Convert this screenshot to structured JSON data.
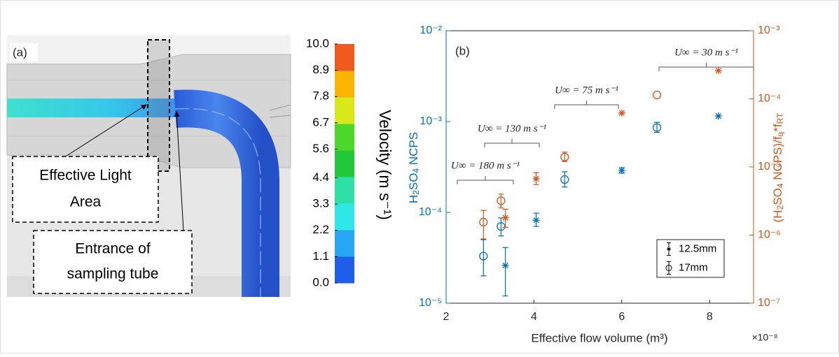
{
  "chart_data": [
    {
      "type": "colorbar",
      "label": "(a)",
      "title": "Velocity (m s⁻¹)",
      "ylim": [
        0,
        10
      ],
      "yticks": [
        {
          "value": 0,
          "label": "0.0"
        },
        1.1,
        2.2,
        3.3,
        4.4,
        5.6,
        6.7,
        7.8,
        8.9,
        {
          "value": 10,
          "label": "10.0"
        }
      ],
      "colors": [
        "#1f5ce8",
        "#27a6f2",
        "#2ee6e6",
        "#2ee0a8",
        "#22c83c",
        "#4cd82a",
        "#d8e818",
        "#f8b400",
        "#f05a1e"
      ],
      "annotations": [
        [
          "Effective Light",
          "Area"
        ],
        [
          "Entrance of",
          "sampling tube"
        ]
      ]
    },
    {
      "type": "scatter",
      "label": "(b)",
      "xlabel": "Effective flow volume  (m³)",
      "x_multiplier": "×10⁻⁸",
      "ylabel": [
        "H",
        "2",
        "SO",
        "4",
        " NCPS"
      ],
      "y2label": [
        "(H",
        "2",
        "SO",
        "4",
        " NCPS)/f",
        "q",
        "*f",
        "RT"
      ],
      "xlim": [
        2,
        9
      ],
      "xticks": [
        2,
        4,
        6,
        8
      ],
      "ylim": [
        1e-05,
        0.01
      ],
      "yscale": "log",
      "yticks": [
        {
          "value": 1e-05,
          "label": "10⁻⁵"
        },
        {
          "value": 0.0001,
          "label": "10⁻⁴"
        },
        {
          "value": 0.001,
          "label": "10⁻³"
        },
        {
          "value": 0.01,
          "label": "10⁻²"
        }
      ],
      "y2lim": [
        1e-07,
        0.001
      ],
      "y2scale": "log",
      "y2ticks": [
        {
          "value": 1e-07,
          "label": "10⁻⁷"
        },
        {
          "value": 1e-06,
          "label": "10⁻⁶"
        },
        {
          "value": 1e-05,
          "label": "10⁻⁵"
        },
        {
          "value": 0.0001,
          "label": "10⁻⁴"
        },
        {
          "value": 0.001,
          "label": "10⁻³"
        }
      ],
      "ycolor": "#0072bd",
      "y2color": "#d95319",
      "legend": "lower right",
      "legend_color": "#000000",
      "series": [
        {
          "name": "12.5mm",
          "marker": "star",
          "color": "#0072bd",
          "x": [
            3.35,
            4.05,
            6.0,
            8.2
          ],
          "values": [
            2.6e-05,
            8.2e-05,
            0.00029,
            0.00115
          ],
          "lower": [
            1.2e-05,
            7e-05,
            0.00027,
            null
          ],
          "upper": [
            4.1e-05,
            9.8e-05,
            0.00031,
            null
          ]
        },
        {
          "name": "17mm",
          "marker": "circle",
          "color": "#0072bd",
          "x": [
            2.85,
            3.25,
            4.7,
            6.8
          ],
          "values": [
            3.3e-05,
            7e-05,
            0.00023,
            0.00086
          ],
          "lower": [
            2e-05,
            5.5e-05,
            0.00019,
            0.00076
          ],
          "upper": [
            5e-05,
            8.7e-05,
            0.00028,
            0.00098
          ]
        },
        {
          "marker": "star",
          "color": "#d95319",
          "axis": "y2",
          "x": [
            3.35,
            4.05,
            6.0,
            8.2
          ],
          "values": [
            1.8e-06,
            6.7e-06,
            6.2e-05,
            0.00026
          ],
          "lower": [
            1.3e-06,
            5.5e-06,
            null,
            null
          ],
          "upper": [
            2.4e-06,
            8.2e-06,
            null,
            null
          ]
        },
        {
          "marker": "circle",
          "color": "#d95319",
          "axis": "y2",
          "x": [
            2.85,
            3.25,
            4.7,
            6.8
          ],
          "values": [
            1.55e-06,
            3.2e-06,
            1.4e-05,
            0.000114
          ],
          "lower": [
            8.8e-07,
            2.5e-06,
            1.2e-05,
            null
          ],
          "upper": [
            2.3e-06,
            4e-06,
            1.65e-05,
            null
          ]
        }
      ],
      "annotations": [
        "U∞ = 180 m s⁻¹",
        "U∞ = 130 m s⁻¹",
        "U∞ = 75 m s⁻¹",
        "U∞ = 30 m s⁻¹"
      ]
    }
  ]
}
